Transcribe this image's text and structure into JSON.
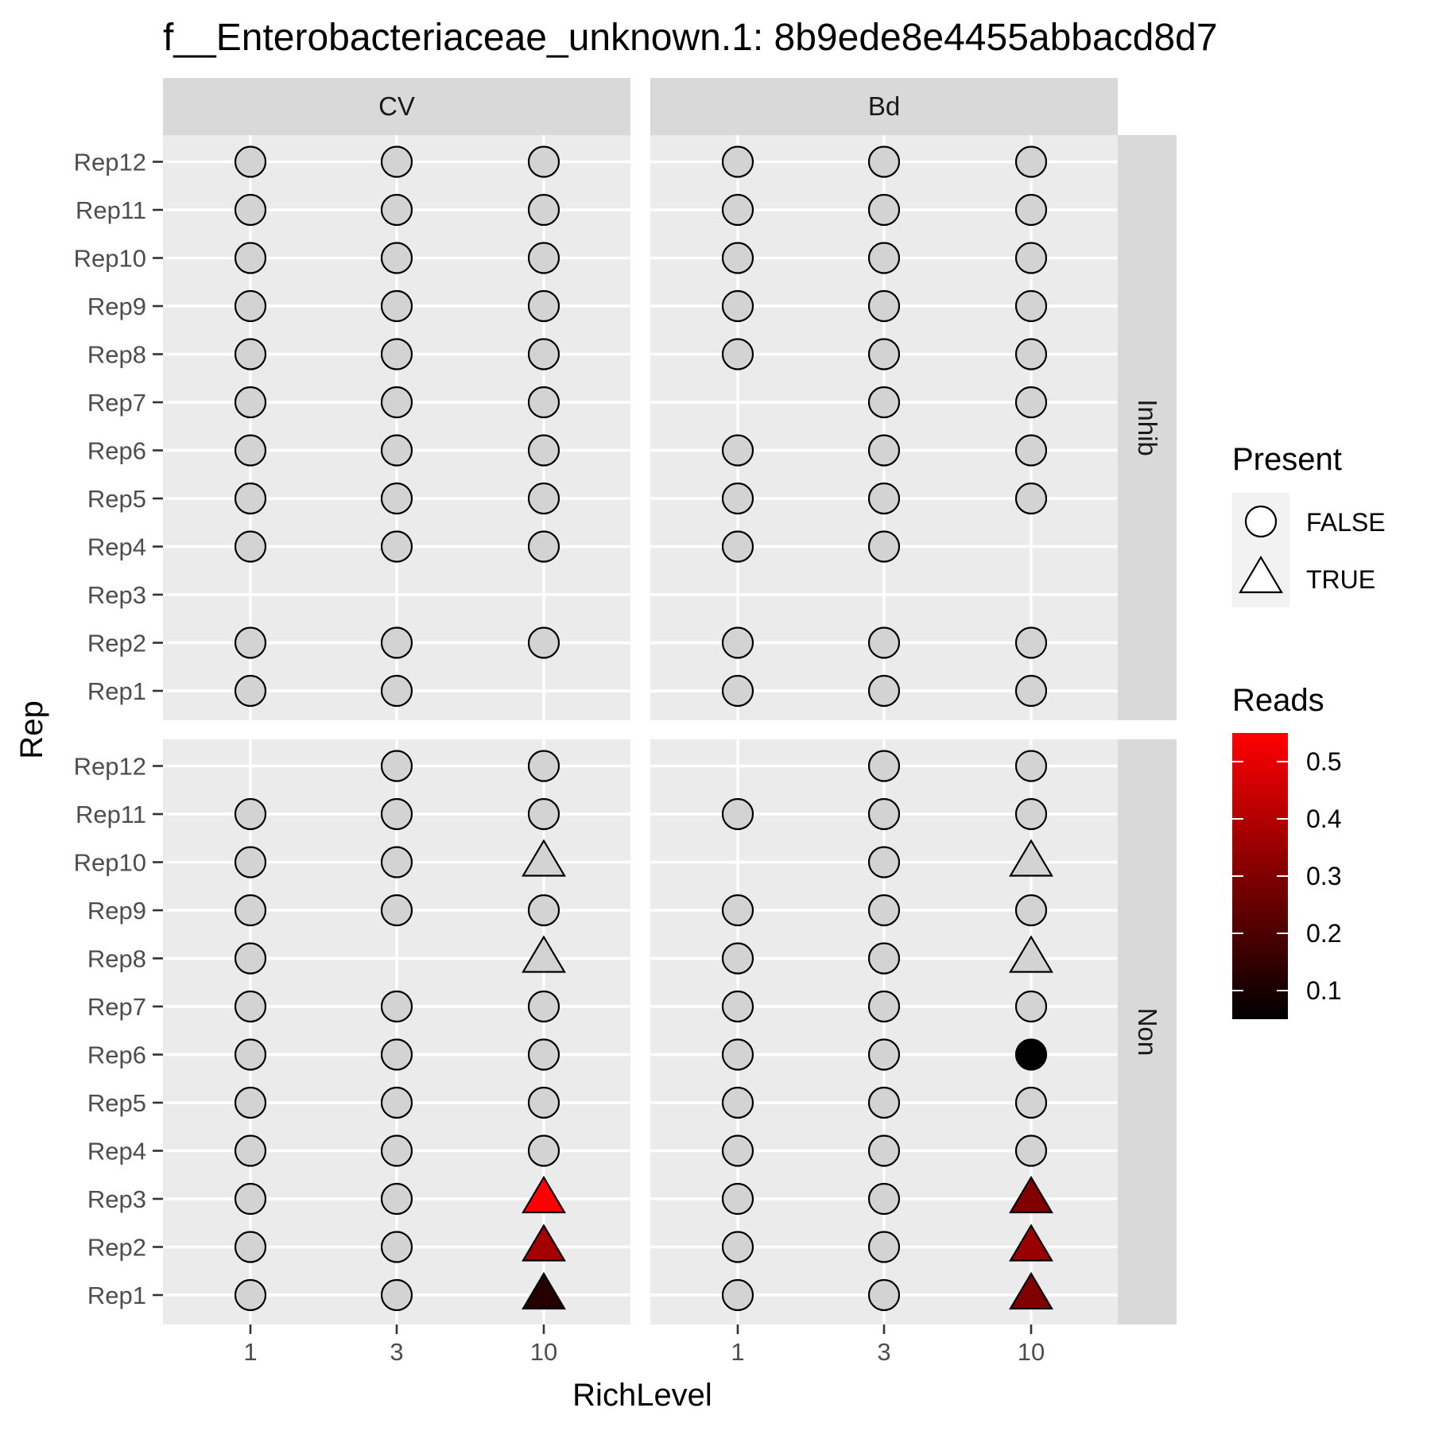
{
  "chart_data": {
    "type": "scatter",
    "title": "f__Enterobacteriaceae_unknown.1: 8b9ede8e4455abbacd8d7",
    "xlabel": "RichLevel",
    "ylabel": "Rep",
    "x_categories": [
      "1",
      "3",
      "10"
    ],
    "y_categories": [
      "Rep1",
      "Rep2",
      "Rep3",
      "Rep4",
      "Rep5",
      "Rep6",
      "Rep7",
      "Rep8",
      "Rep9",
      "Rep10",
      "Rep11",
      "Rep12"
    ],
    "facet_cols": [
      "CV",
      "Bd"
    ],
    "facet_rows": [
      "Inhib",
      "Non"
    ],
    "grid": true,
    "legend_position": "right",
    "legend_shape": {
      "title": "Present",
      "entries": [
        {
          "label": "FALSE",
          "shape": "circle"
        },
        {
          "label": "TRUE",
          "shape": "triangle"
        }
      ]
    },
    "legend_color": {
      "title": "Reads",
      "low_color": "#000000",
      "high_color": "#ff0000",
      "range": [
        0.05,
        0.55
      ],
      "ticks": [
        "0.1",
        "0.2",
        "0.3",
        "0.4",
        "0.5"
      ]
    },
    "na_fill": "#d3d3d3",
    "panels": [
      {
        "col": "CV",
        "row": "Inhib",
        "points": [
          {
            "x": "1",
            "y": "Rep12",
            "shape": "circle",
            "reads": null
          },
          {
            "x": "3",
            "y": "Rep12",
            "shape": "circle",
            "reads": null
          },
          {
            "x": "10",
            "y": "Rep12",
            "shape": "circle",
            "reads": null
          },
          {
            "x": "1",
            "y": "Rep11",
            "shape": "circle",
            "reads": null
          },
          {
            "x": "3",
            "y": "Rep11",
            "shape": "circle",
            "reads": null
          },
          {
            "x": "10",
            "y": "Rep11",
            "shape": "circle",
            "reads": null
          },
          {
            "x": "1",
            "y": "Rep10",
            "shape": "circle",
            "reads": null
          },
          {
            "x": "3",
            "y": "Rep10",
            "shape": "circle",
            "reads": null
          },
          {
            "x": "10",
            "y": "Rep10",
            "shape": "circle",
            "reads": null
          },
          {
            "x": "1",
            "y": "Rep9",
            "shape": "circle",
            "reads": null
          },
          {
            "x": "3",
            "y": "Rep9",
            "shape": "circle",
            "reads": null
          },
          {
            "x": "10",
            "y": "Rep9",
            "shape": "circle",
            "reads": null
          },
          {
            "x": "1",
            "y": "Rep8",
            "shape": "circle",
            "reads": null
          },
          {
            "x": "3",
            "y": "Rep8",
            "shape": "circle",
            "reads": null
          },
          {
            "x": "10",
            "y": "Rep8",
            "shape": "circle",
            "reads": null
          },
          {
            "x": "1",
            "y": "Rep7",
            "shape": "circle",
            "reads": null
          },
          {
            "x": "3",
            "y": "Rep7",
            "shape": "circle",
            "reads": null
          },
          {
            "x": "10",
            "y": "Rep7",
            "shape": "circle",
            "reads": null
          },
          {
            "x": "1",
            "y": "Rep6",
            "shape": "circle",
            "reads": null
          },
          {
            "x": "3",
            "y": "Rep6",
            "shape": "circle",
            "reads": null
          },
          {
            "x": "10",
            "y": "Rep6",
            "shape": "circle",
            "reads": null
          },
          {
            "x": "1",
            "y": "Rep5",
            "shape": "circle",
            "reads": null
          },
          {
            "x": "3",
            "y": "Rep5",
            "shape": "circle",
            "reads": null
          },
          {
            "x": "10",
            "y": "Rep5",
            "shape": "circle",
            "reads": null
          },
          {
            "x": "1",
            "y": "Rep4",
            "shape": "circle",
            "reads": null
          },
          {
            "x": "3",
            "y": "Rep4",
            "shape": "circle",
            "reads": null
          },
          {
            "x": "10",
            "y": "Rep4",
            "shape": "circle",
            "reads": null
          },
          {
            "x": "1",
            "y": "Rep2",
            "shape": "circle",
            "reads": null
          },
          {
            "x": "3",
            "y": "Rep2",
            "shape": "circle",
            "reads": null
          },
          {
            "x": "10",
            "y": "Rep2",
            "shape": "circle",
            "reads": null
          },
          {
            "x": "1",
            "y": "Rep1",
            "shape": "circle",
            "reads": null
          },
          {
            "x": "3",
            "y": "Rep1",
            "shape": "circle",
            "reads": null
          }
        ]
      },
      {
        "col": "Bd",
        "row": "Inhib",
        "points": [
          {
            "x": "1",
            "y": "Rep12",
            "shape": "circle",
            "reads": null
          },
          {
            "x": "3",
            "y": "Rep12",
            "shape": "circle",
            "reads": null
          },
          {
            "x": "10",
            "y": "Rep12",
            "shape": "circle",
            "reads": null
          },
          {
            "x": "1",
            "y": "Rep11",
            "shape": "circle",
            "reads": null
          },
          {
            "x": "3",
            "y": "Rep11",
            "shape": "circle",
            "reads": null
          },
          {
            "x": "10",
            "y": "Rep11",
            "shape": "circle",
            "reads": null
          },
          {
            "x": "1",
            "y": "Rep10",
            "shape": "circle",
            "reads": null
          },
          {
            "x": "3",
            "y": "Rep10",
            "shape": "circle",
            "reads": null
          },
          {
            "x": "10",
            "y": "Rep10",
            "shape": "circle",
            "reads": null
          },
          {
            "x": "1",
            "y": "Rep9",
            "shape": "circle",
            "reads": null
          },
          {
            "x": "3",
            "y": "Rep9",
            "shape": "circle",
            "reads": null
          },
          {
            "x": "10",
            "y": "Rep9",
            "shape": "circle",
            "reads": null
          },
          {
            "x": "1",
            "y": "Rep8",
            "shape": "circle",
            "reads": null
          },
          {
            "x": "3",
            "y": "Rep8",
            "shape": "circle",
            "reads": null
          },
          {
            "x": "10",
            "y": "Rep8",
            "shape": "circle",
            "reads": null
          },
          {
            "x": "3",
            "y": "Rep7",
            "shape": "circle",
            "reads": null
          },
          {
            "x": "10",
            "y": "Rep7",
            "shape": "circle",
            "reads": null
          },
          {
            "x": "1",
            "y": "Rep6",
            "shape": "circle",
            "reads": null
          },
          {
            "x": "3",
            "y": "Rep6",
            "shape": "circle",
            "reads": null
          },
          {
            "x": "10",
            "y": "Rep6",
            "shape": "circle",
            "reads": null
          },
          {
            "x": "1",
            "y": "Rep5",
            "shape": "circle",
            "reads": null
          },
          {
            "x": "3",
            "y": "Rep5",
            "shape": "circle",
            "reads": null
          },
          {
            "x": "10",
            "y": "Rep5",
            "shape": "circle",
            "reads": null
          },
          {
            "x": "1",
            "y": "Rep4",
            "shape": "circle",
            "reads": null
          },
          {
            "x": "3",
            "y": "Rep4",
            "shape": "circle",
            "reads": null
          },
          {
            "x": "1",
            "y": "Rep2",
            "shape": "circle",
            "reads": null
          },
          {
            "x": "3",
            "y": "Rep2",
            "shape": "circle",
            "reads": null
          },
          {
            "x": "10",
            "y": "Rep2",
            "shape": "circle",
            "reads": null
          },
          {
            "x": "1",
            "y": "Rep1",
            "shape": "circle",
            "reads": null
          },
          {
            "x": "3",
            "y": "Rep1",
            "shape": "circle",
            "reads": null
          },
          {
            "x": "10",
            "y": "Rep1",
            "shape": "circle",
            "reads": null
          }
        ]
      },
      {
        "col": "CV",
        "row": "Non",
        "points": [
          {
            "x": "3",
            "y": "Rep12",
            "shape": "circle",
            "reads": null
          },
          {
            "x": "10",
            "y": "Rep12",
            "shape": "circle",
            "reads": null
          },
          {
            "x": "1",
            "y": "Rep11",
            "shape": "circle",
            "reads": null
          },
          {
            "x": "3",
            "y": "Rep11",
            "shape": "circle",
            "reads": null
          },
          {
            "x": "10",
            "y": "Rep11",
            "shape": "circle",
            "reads": null
          },
          {
            "x": "1",
            "y": "Rep10",
            "shape": "circle",
            "reads": null
          },
          {
            "x": "3",
            "y": "Rep10",
            "shape": "circle",
            "reads": null
          },
          {
            "x": "10",
            "y": "Rep10",
            "shape": "triangle",
            "reads": null
          },
          {
            "x": "1",
            "y": "Rep9",
            "shape": "circle",
            "reads": null
          },
          {
            "x": "3",
            "y": "Rep9",
            "shape": "circle",
            "reads": null
          },
          {
            "x": "10",
            "y": "Rep9",
            "shape": "circle",
            "reads": null
          },
          {
            "x": "1",
            "y": "Rep8",
            "shape": "circle",
            "reads": null
          },
          {
            "x": "10",
            "y": "Rep8",
            "shape": "triangle",
            "reads": null
          },
          {
            "x": "1",
            "y": "Rep7",
            "shape": "circle",
            "reads": null
          },
          {
            "x": "3",
            "y": "Rep7",
            "shape": "circle",
            "reads": null
          },
          {
            "x": "10",
            "y": "Rep7",
            "shape": "circle",
            "reads": null
          },
          {
            "x": "1",
            "y": "Rep6",
            "shape": "circle",
            "reads": null
          },
          {
            "x": "3",
            "y": "Rep6",
            "shape": "circle",
            "reads": null
          },
          {
            "x": "10",
            "y": "Rep6",
            "shape": "circle",
            "reads": null
          },
          {
            "x": "1",
            "y": "Rep5",
            "shape": "circle",
            "reads": null
          },
          {
            "x": "3",
            "y": "Rep5",
            "shape": "circle",
            "reads": null
          },
          {
            "x": "10",
            "y": "Rep5",
            "shape": "circle",
            "reads": null
          },
          {
            "x": "1",
            "y": "Rep4",
            "shape": "circle",
            "reads": null
          },
          {
            "x": "3",
            "y": "Rep4",
            "shape": "circle",
            "reads": null
          },
          {
            "x": "10",
            "y": "Rep4",
            "shape": "circle",
            "reads": null
          },
          {
            "x": "1",
            "y": "Rep3",
            "shape": "circle",
            "reads": null
          },
          {
            "x": "3",
            "y": "Rep3",
            "shape": "circle",
            "reads": null
          },
          {
            "x": "10",
            "y": "Rep3",
            "shape": "triangle",
            "reads": 0.55
          },
          {
            "x": "1",
            "y": "Rep2",
            "shape": "circle",
            "reads": null
          },
          {
            "x": "3",
            "y": "Rep2",
            "shape": "circle",
            "reads": null
          },
          {
            "x": "10",
            "y": "Rep2",
            "shape": "triangle",
            "reads": 0.37
          },
          {
            "x": "1",
            "y": "Rep1",
            "shape": "circle",
            "reads": null
          },
          {
            "x": "3",
            "y": "Rep1",
            "shape": "circle",
            "reads": null
          },
          {
            "x": "10",
            "y": "Rep1",
            "shape": "triangle",
            "reads": 0.12
          }
        ]
      },
      {
        "col": "Bd",
        "row": "Non",
        "points": [
          {
            "x": "3",
            "y": "Rep12",
            "shape": "circle",
            "reads": null
          },
          {
            "x": "10",
            "y": "Rep12",
            "shape": "circle",
            "reads": null
          },
          {
            "x": "1",
            "y": "Rep11",
            "shape": "circle",
            "reads": null
          },
          {
            "x": "3",
            "y": "Rep11",
            "shape": "circle",
            "reads": null
          },
          {
            "x": "10",
            "y": "Rep11",
            "shape": "circle",
            "reads": null
          },
          {
            "x": "3",
            "y": "Rep10",
            "shape": "circle",
            "reads": null
          },
          {
            "x": "10",
            "y": "Rep10",
            "shape": "triangle",
            "reads": null
          },
          {
            "x": "1",
            "y": "Rep9",
            "shape": "circle",
            "reads": null
          },
          {
            "x": "3",
            "y": "Rep9",
            "shape": "circle",
            "reads": null
          },
          {
            "x": "10",
            "y": "Rep9",
            "shape": "circle",
            "reads": null
          },
          {
            "x": "1",
            "y": "Rep8",
            "shape": "circle",
            "reads": null
          },
          {
            "x": "3",
            "y": "Rep8",
            "shape": "circle",
            "reads": null
          },
          {
            "x": "10",
            "y": "Rep8",
            "shape": "triangle",
            "reads": null
          },
          {
            "x": "1",
            "y": "Rep7",
            "shape": "circle",
            "reads": null
          },
          {
            "x": "3",
            "y": "Rep7",
            "shape": "circle",
            "reads": null
          },
          {
            "x": "10",
            "y": "Rep7",
            "shape": "circle",
            "reads": null
          },
          {
            "x": "1",
            "y": "Rep6",
            "shape": "circle",
            "reads": null
          },
          {
            "x": "3",
            "y": "Rep6",
            "shape": "circle",
            "reads": null
          },
          {
            "x": "10",
            "y": "Rep6",
            "shape": "circle",
            "reads": 0.0
          },
          {
            "x": "1",
            "y": "Rep5",
            "shape": "circle",
            "reads": null
          },
          {
            "x": "3",
            "y": "Rep5",
            "shape": "circle",
            "reads": null
          },
          {
            "x": "10",
            "y": "Rep5",
            "shape": "circle",
            "reads": null
          },
          {
            "x": "1",
            "y": "Rep4",
            "shape": "circle",
            "reads": null
          },
          {
            "x": "3",
            "y": "Rep4",
            "shape": "circle",
            "reads": null
          },
          {
            "x": "10",
            "y": "Rep4",
            "shape": "circle",
            "reads": null
          },
          {
            "x": "1",
            "y": "Rep3",
            "shape": "circle",
            "reads": null
          },
          {
            "x": "3",
            "y": "Rep3",
            "shape": "circle",
            "reads": null
          },
          {
            "x": "10",
            "y": "Rep3",
            "shape": "triangle",
            "reads": 0.3
          },
          {
            "x": "1",
            "y": "Rep2",
            "shape": "circle",
            "reads": null
          },
          {
            "x": "3",
            "y": "Rep2",
            "shape": "circle",
            "reads": null
          },
          {
            "x": "10",
            "y": "Rep2",
            "shape": "triangle",
            "reads": 0.35
          },
          {
            "x": "1",
            "y": "Rep1",
            "shape": "circle",
            "reads": null
          },
          {
            "x": "3",
            "y": "Rep1",
            "shape": "circle",
            "reads": null
          },
          {
            "x": "10",
            "y": "Rep1",
            "shape": "triangle",
            "reads": 0.3
          }
        ]
      }
    ]
  }
}
